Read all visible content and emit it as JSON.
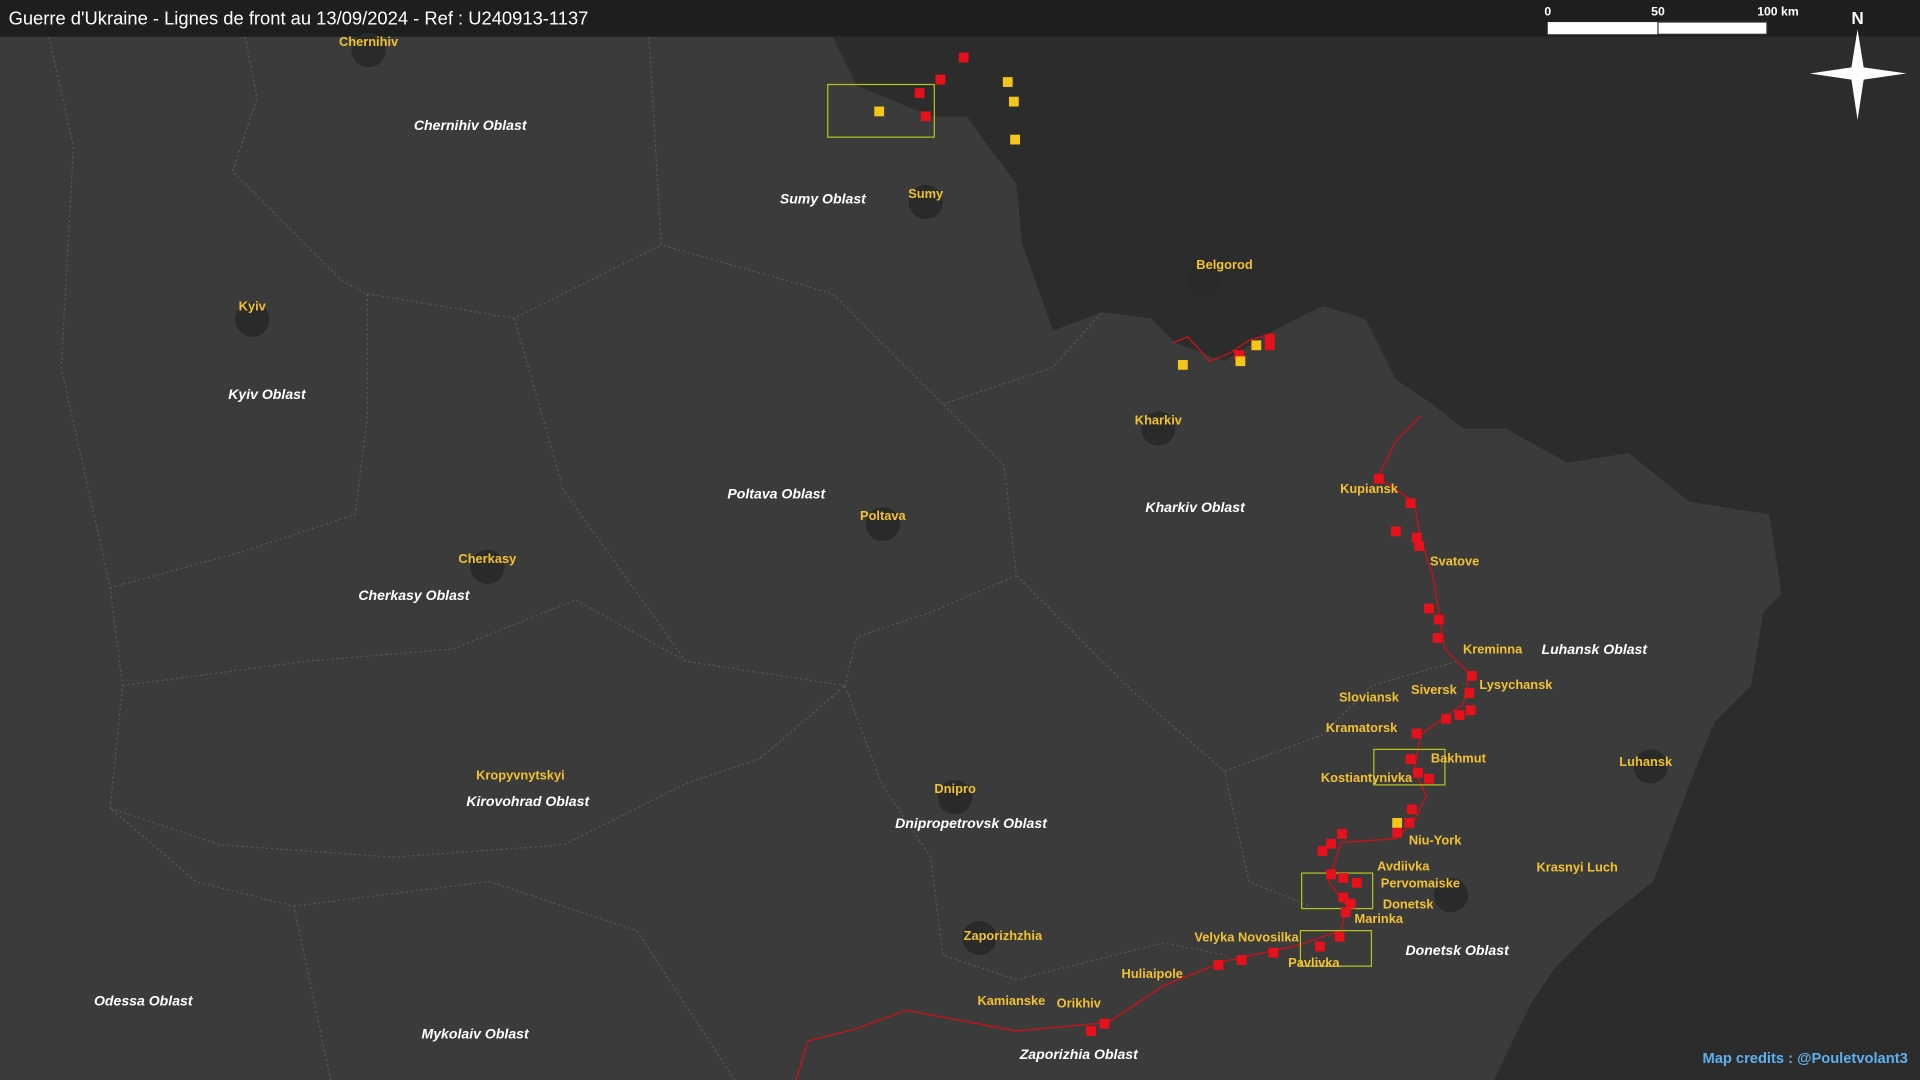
{
  "title": "Guerre d'Ukraine - Lignes de front au 13/09/2024 - Ref : U240913-1137",
  "scale_labels": [
    "0",
    "50",
    "100 km"
  ],
  "north": "N",
  "cities": [
    "Chernihiv",
    "Sumy",
    "Belgorod",
    "Kyiv",
    "Kharkiv",
    "Kupiansk",
    "Poltava",
    "Cherkasy",
    "Svatove",
    "Kreminna",
    "Siversk",
    "Lysychansk",
    "Sloviansk",
    "Kramatorsk",
    "Bakhmut",
    "Kostiantynivka",
    "Kropyvnytskyi",
    "Dnipro",
    "Luhansk",
    "Niu-York",
    "Avdiivka",
    "Krasnyi Luch",
    "Pervomaiske",
    "Donetsk",
    "Marinka",
    "Zaporizhzhia",
    "Velyka Novosilka",
    "Pavlivka",
    "Huliaipole",
    "Kamianske",
    "Orikhiv"
  ],
  "oblasts": [
    "Chernihiv Oblast",
    "Sumy Oblast",
    "Kyiv Oblast",
    "Poltava Oblast",
    "Kharkiv Oblast",
    "Cherkasy Oblast",
    "Luhansk Oblast",
    "Kirovohrad Oblast",
    "Dnipropetrovsk Oblast",
    "Donetsk Oblast",
    "Odessa Oblast",
    "Mykolaiv Oblast",
    "Zaporizhia Oblast"
  ],
  "credits": "Map credits : @Pouletvolant3"
}
